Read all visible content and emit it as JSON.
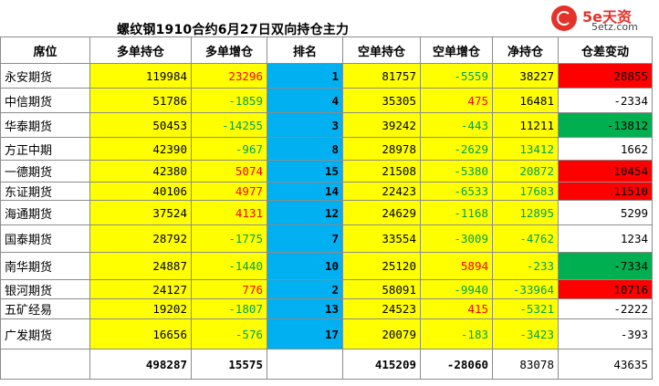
{
  "title": "螺纹钢1910合约6月27日双向持仓主力",
  "logo": {
    "brand": "5e天资",
    "site": "5etz.com"
  },
  "headers": [
    "席位",
    "多单持仓",
    "多单增仓",
    "排名",
    "空单持仓",
    "空单增仓",
    "净持仓",
    "仓差变动"
  ],
  "rows": [
    [
      "永安期货",
      "119984",
      "23296",
      "1",
      "81757",
      "-5559",
      "38227",
      "28855"
    ],
    [
      "中信期货",
      "51786",
      "-1859",
      "4",
      "35305",
      "475",
      "16481",
      "-2334"
    ],
    [
      "华泰期货",
      "50453",
      "-14255",
      "3",
      "39242",
      "-443",
      "11211",
      "-13812"
    ],
    [
      "方正中期",
      "42390",
      "-967",
      "8",
      "28978",
      "-2629",
      "13412",
      "1662"
    ],
    [
      "一德期货",
      "42380",
      "5074",
      "15",
      "21508",
      "-5380",
      "20872",
      "10454"
    ],
    [
      "东证期货",
      "40106",
      "4977",
      "14",
      "22423",
      "-6533",
      "17683",
      "11510"
    ],
    [
      "海通期货",
      "37524",
      "4131",
      "12",
      "24629",
      "-1168",
      "12895",
      "5299"
    ],
    [
      "国泰期货",
      "28792",
      "-1775",
      "7",
      "33554",
      "-3009",
      "-4762",
      "1234"
    ],
    [
      "南华期货",
      "24887",
      "-1440",
      "10",
      "25120",
      "5894",
      "-233",
      "-7334"
    ],
    [
      "银河期货",
      "24127",
      "776",
      "2",
      "58091",
      "-9940",
      "-33964",
      "10716"
    ],
    [
      "五矿经易",
      "19202",
      "-1807",
      "13",
      "24523",
      "415",
      "-5321",
      "-2222"
    ],
    [
      "广发期货",
      "16656",
      "-576",
      "17",
      "20079",
      "-183",
      "-3423",
      "-393"
    ]
  ],
  "totals": [
    "",
    "498287",
    "15575",
    "",
    "415209",
    "-28060",
    "83078",
    "43635"
  ]
}
